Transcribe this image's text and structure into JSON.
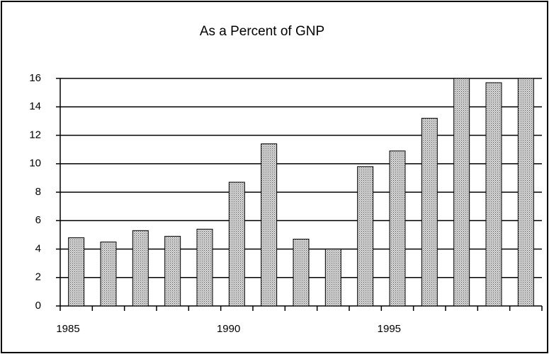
{
  "chart_data": {
    "type": "bar",
    "title": "As a Percent of GNP",
    "categories": [
      "1985",
      null,
      null,
      null,
      null,
      "1990",
      null,
      null,
      null,
      null,
      "1995",
      null,
      null,
      null,
      null
    ],
    "values": [
      4.8,
      4.5,
      5.3,
      4.9,
      5.4,
      8.7,
      11.4,
      4.7,
      4.0,
      9.8,
      10.9,
      13.2,
      16,
      15.7,
      16
    ],
    "color": "#a8a8a8",
    "ylim": [
      0,
      16
    ],
    "yticks": [
      0,
      2,
      4,
      6,
      8,
      10,
      12,
      14,
      16
    ],
    "grid": true
  }
}
